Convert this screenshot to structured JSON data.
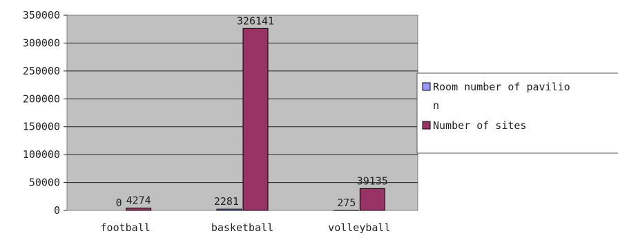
{
  "chart_data": {
    "type": "bar",
    "categories": [
      "football",
      "basketball",
      "volleyball"
    ],
    "series": [
      {
        "name": "Room number of pavilion",
        "values": [
          0,
          2281,
          275
        ],
        "color": "#9999ff"
      },
      {
        "name": "Number of sites",
        "values": [
          4274,
          326141,
          39135
        ],
        "color": "#993366"
      }
    ],
    "ylim": [
      0,
      350000
    ],
    "yticks": [
      "350000",
      "300000",
      "250000",
      "200000",
      "150000",
      "100000",
      "50000",
      "0"
    ],
    "grid": true,
    "plot_background": "#c0c0c0",
    "legend_position": "right",
    "legend": {
      "line1": "Room number of pavilio",
      "line2": "n",
      "line3": "Number of sites"
    }
  }
}
